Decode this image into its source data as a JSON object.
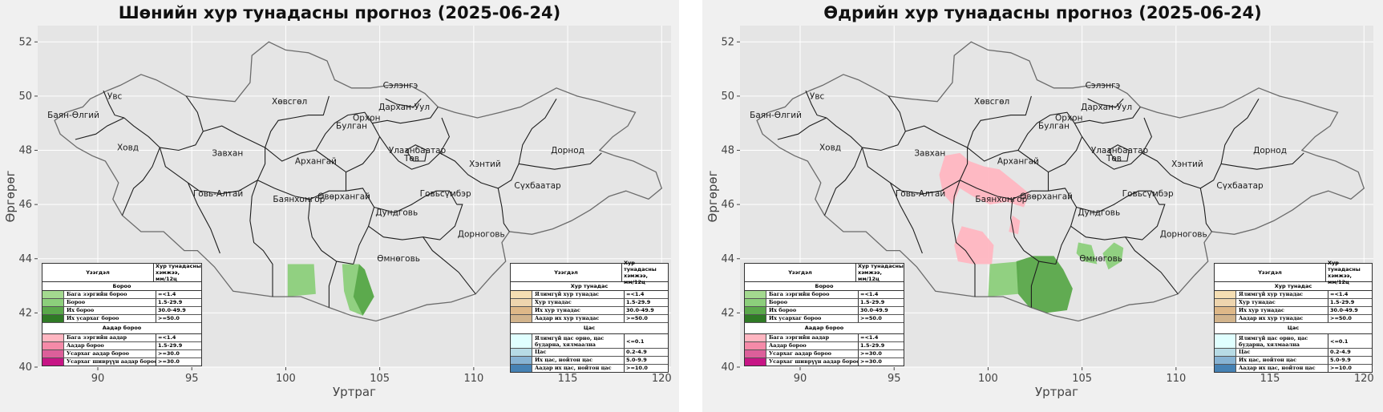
{
  "bounds": {
    "lon_min": 86.8,
    "lon_max": 120.5,
    "lat_min": 40,
    "lat_max": 52.6
  },
  "x_ticks": [
    90,
    95,
    100,
    105,
    110,
    115,
    120
  ],
  "y_ticks": [
    40,
    42,
    44,
    46,
    48,
    50,
    52
  ],
  "x_label": "Уртраг",
  "y_label": "Өргөрөг",
  "colors": {
    "plot_bg": "#e5e5e5",
    "grid": "#ffffff",
    "border": "#1e1e1e",
    "outline": "#6b6b6b",
    "rain_light": "#a3d98f",
    "rain": "#8ccf7b",
    "rain_heavy": "#5aa84a",
    "rain_extreme": "#2f7a25",
    "storm_light": "#ffb6c1",
    "storm": "#f58aa8",
    "storm_heavy": "#dc5f9a",
    "storm_severe": "#c71585",
    "dry_none": "#f5deb3",
    "dry_light": "#eed5ae",
    "dry_heavy": "#deb888",
    "dry_storm": "#d2b48c",
    "snow_none": "#e0ffff",
    "snow": "#b7dbe5",
    "snow_heavy": "#87b3d3",
    "snow_storm": "#4682b4"
  },
  "regions": [
    {
      "name": "Увс",
      "lon": 90.9,
      "lat": 49.9
    },
    {
      "name": "Баян-Өлгий",
      "lon": 88.7,
      "lat": 49.2
    },
    {
      "name": "Ховд",
      "lon": 91.6,
      "lat": 48.0
    },
    {
      "name": "Завхан",
      "lon": 96.9,
      "lat": 47.8
    },
    {
      "name": "Говь-Алтай",
      "lon": 96.4,
      "lat": 46.3
    },
    {
      "name": "Хөвсгөл",
      "lon": 100.2,
      "lat": 49.7
    },
    {
      "name": "Архангай",
      "lon": 101.6,
      "lat": 47.5
    },
    {
      "name": "Баянхонгор",
      "lon": 100.7,
      "lat": 46.1
    },
    {
      "name": "Өвөрхангай",
      "lon": 103.1,
      "lat": 46.2
    },
    {
      "name": "Булган",
      "lon": 103.5,
      "lat": 48.8
    },
    {
      "name": "Орхон",
      "lon": 104.3,
      "lat": 49.1
    },
    {
      "name": "Сэлэнгэ",
      "lon": 106.1,
      "lat": 50.3
    },
    {
      "name": "Дархан-Уул",
      "lon": 106.3,
      "lat": 49.5
    },
    {
      "name": "Улаанбаатар",
      "lon": 107.0,
      "lat": 47.9
    },
    {
      "name": "Төв",
      "lon": 106.7,
      "lat": 47.6
    },
    {
      "name": "Хэнтий",
      "lon": 110.6,
      "lat": 47.4
    },
    {
      "name": "Дорнод",
      "lon": 115.0,
      "lat": 47.9
    },
    {
      "name": "Сүхбаатар",
      "lon": 113.4,
      "lat": 46.6
    },
    {
      "name": "Говьсүмбэр",
      "lon": 108.5,
      "lat": 46.3
    },
    {
      "name": "Дундговь",
      "lon": 105.9,
      "lat": 45.6
    },
    {
      "name": "Дорноговь",
      "lon": 110.4,
      "lat": 44.8
    },
    {
      "name": "Өмнөговь",
      "lon": 106.0,
      "lat": 43.9
    }
  ],
  "maps": [
    {
      "title": "Шөнийн хур тунадасны прогноз (2025-06-24)"
    },
    {
      "title": "Өдрийн хур тунадасны прогноз (2025-06-24)"
    }
  ],
  "legend_left": {
    "header": {
      "phenomenon": "Үзэгдэл",
      "amount": "Хур тунадасны хэмжээ, мм/12ц"
    },
    "groups": [
      {
        "title": "Бороо",
        "rows": [
          {
            "name": "Бага зэргийн бороо",
            "range": "=<1.4",
            "color": "#a3d98f"
          },
          {
            "name": "Бороо",
            "range": "1.5-29.9",
            "color": "#8ccf7b"
          },
          {
            "name": "Их бороо",
            "range": "30.0-49.9",
            "color": "#5aa84a"
          },
          {
            "name": "Их усархаг бороо",
            "range": ">=50.0",
            "color": "#2f7a25"
          }
        ]
      },
      {
        "title": "Аадар бороо",
        "rows": [
          {
            "name": "Бага зэргийн аадар",
            "range": "=<1.4",
            "color": "#ffb6c1"
          },
          {
            "name": "Аадар бороо",
            "range": "1.5-29.9",
            "color": "#f58aa8"
          },
          {
            "name": "Усархаг аадар бороо",
            "range": ">=30.0",
            "color": "#dc5f9a"
          },
          {
            "name": "Усархаг шиврүүн аадар бороо",
            "range": ">=30.0",
            "color": "#c71585"
          }
        ]
      }
    ]
  },
  "legend_right": {
    "header": {
      "phenomenon": "Үзэгдэл",
      "amount": "Хур тунадасны хэмжээ, мм/12ц"
    },
    "groups": [
      {
        "title": "Хур тунадас",
        "rows": [
          {
            "name": "Ялимгүй хур тунадас",
            "range": "=<1.4",
            "color": "#f5deb3"
          },
          {
            "name": "Хур тунадас",
            "range": "1.5-29.9",
            "color": "#eed5ae"
          },
          {
            "name": "Их хур тунадас",
            "range": "30.0-49.9",
            "color": "#deb888"
          },
          {
            "name": "Аадар их хур тунадас",
            "range": ">=50.0",
            "color": "#d2b48c"
          }
        ]
      },
      {
        "title": "Цас",
        "rows": [
          {
            "name": "Ялимгүй цас орно, цас бударна, хялмаална",
            "range": "<=0.1",
            "color": "#e0ffff",
            "tall": true
          },
          {
            "name": "Цас",
            "range": "0.2-4.9",
            "color": "#b7dbe5"
          },
          {
            "name": "Их цас, нойтон цас",
            "range": "5.0-9.9",
            "color": "#87b3d3"
          },
          {
            "name": "Аадар их цас, нойтон цас",
            "range": ">=10.0",
            "color": "#4682b4"
          }
        ]
      }
    ]
  }
}
